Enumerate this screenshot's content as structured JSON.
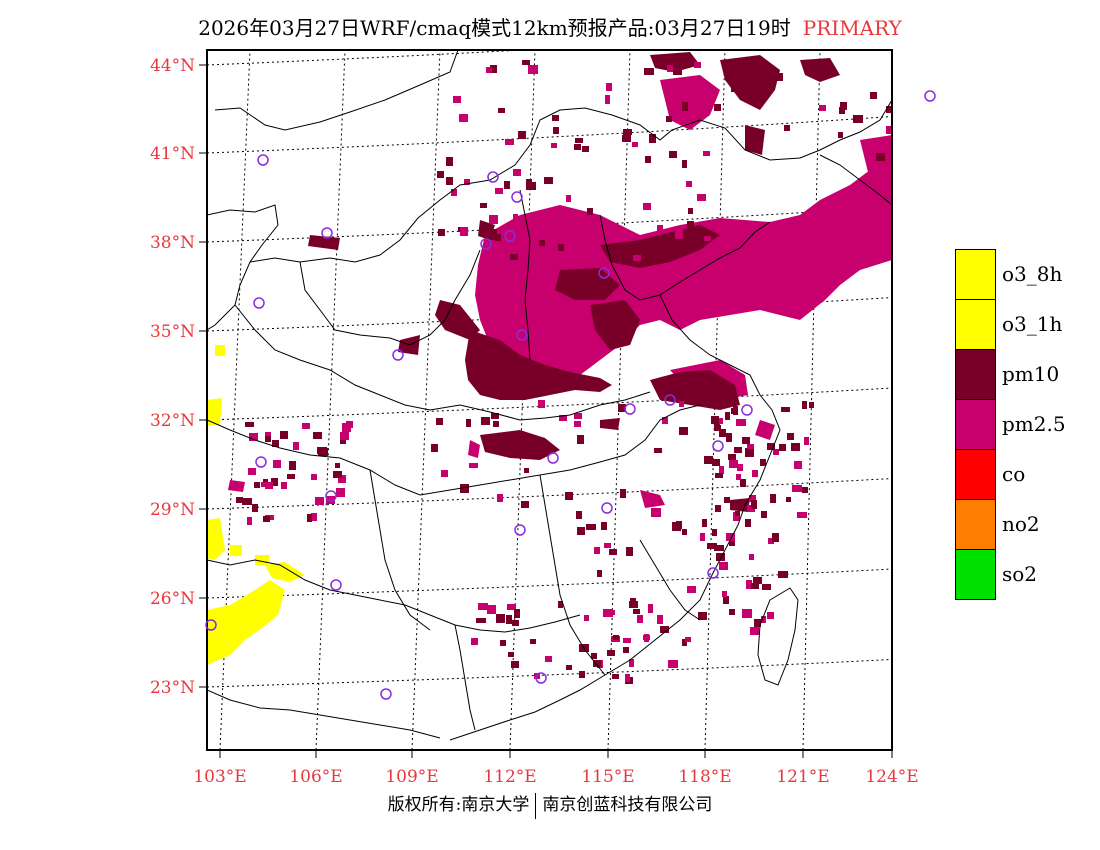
{
  "header": {
    "title": "2026年03月27日WRF/cmaq模式12km预报产品:03月27日19时",
    "tag": "PRIMARY"
  },
  "map": {
    "lat_labels": [
      "44°N",
      "41°N",
      "38°N",
      "35°N",
      "32°N",
      "29°N",
      "26°N",
      "23°N"
    ],
    "lon_labels": [
      "103°E",
      "106°E",
      "109°E",
      "112°E",
      "115°E",
      "118°E",
      "121°E",
      "124°E"
    ],
    "lat_values": [
      44,
      41,
      38,
      35,
      32,
      29,
      26,
      23
    ],
    "lon_values": [
      103,
      106,
      109,
      112,
      115,
      118,
      121,
      124
    ]
  },
  "legend": {
    "items": [
      {
        "label": "o3_8h",
        "color": "#ffff00"
      },
      {
        "label": "o3_1h",
        "color": "#ffff00"
      },
      {
        "label": "pm10",
        "color": "#780028"
      },
      {
        "label": "pm2.5",
        "color": "#c8006e"
      },
      {
        "label": "co",
        "color": "#ff0000"
      },
      {
        "label": "no2",
        "color": "#ff7d00"
      },
      {
        "label": "so2",
        "color": "#00e100"
      }
    ]
  },
  "footer": {
    "left": "版权所有:南京大学",
    "right": "南京创蓝科技有限公司"
  }
}
